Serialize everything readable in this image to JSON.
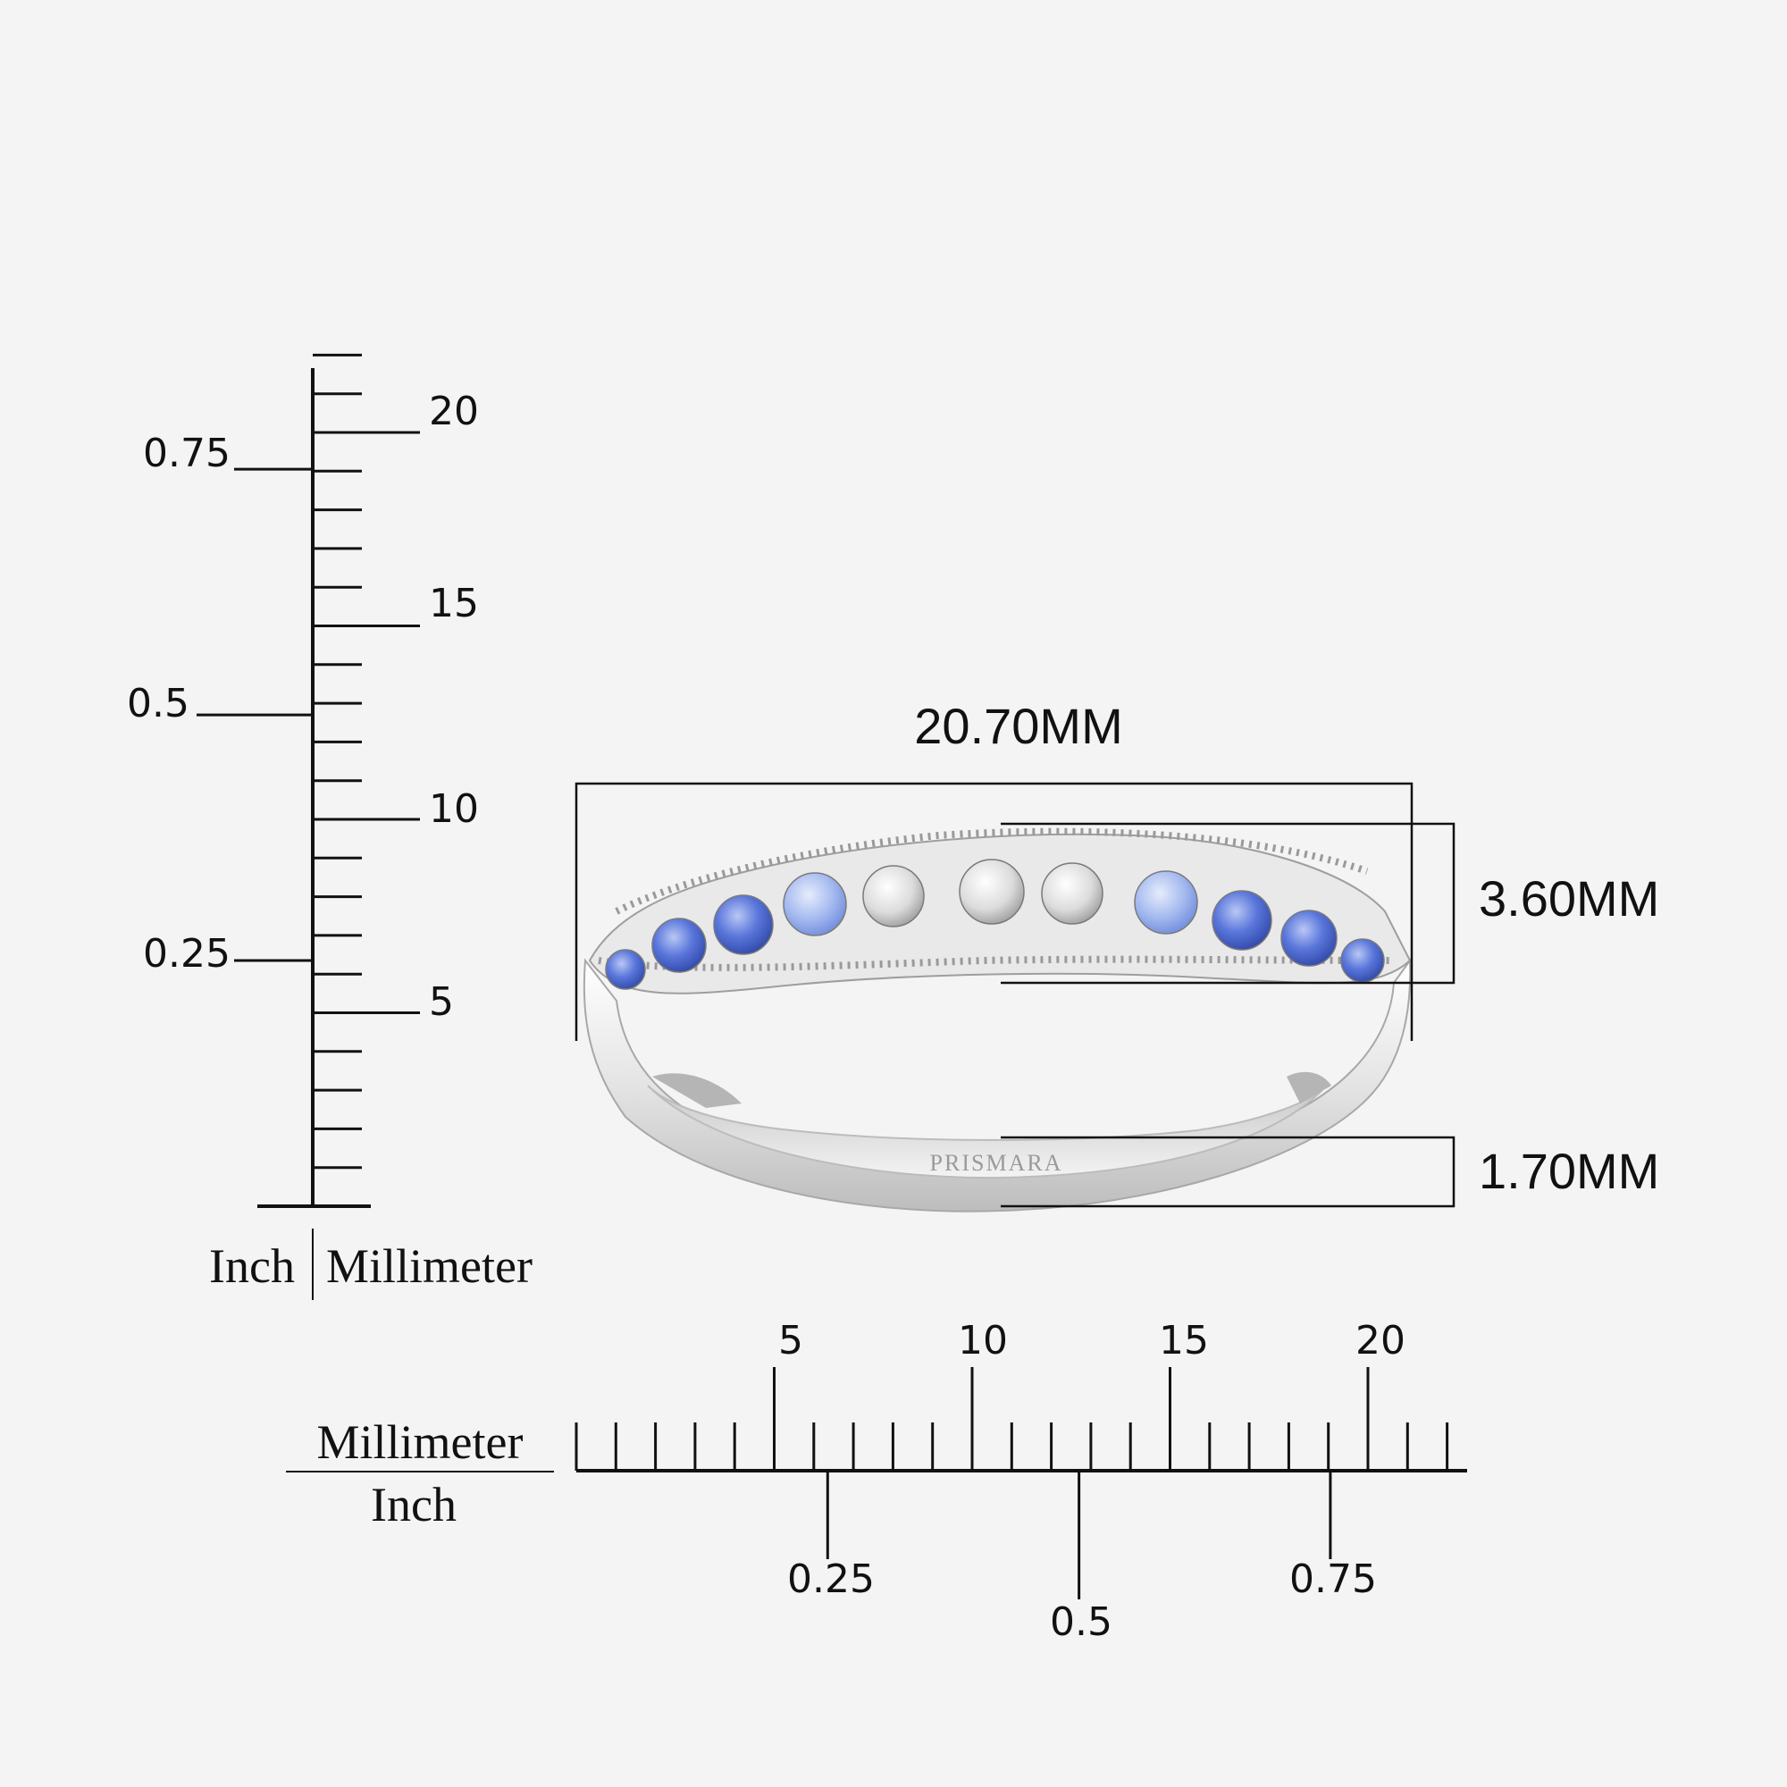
{
  "vertical_ruler": {
    "mm_labels": [
      "5",
      "10",
      "15",
      "20"
    ],
    "inch_labels": [
      "0.25",
      "0.5",
      "0.75"
    ],
    "unit_left": "Inch",
    "unit_right": "Millimeter",
    "mm_values": [
      5,
      10,
      15,
      20
    ],
    "inch_values": [
      0.25,
      0.5,
      0.75
    ]
  },
  "horizontal_ruler": {
    "mm_labels": [
      "5",
      "10",
      "15",
      "20"
    ],
    "inch_labels": [
      "0.25",
      "0.5",
      "0.75"
    ],
    "unit_top": "Millimeter",
    "unit_bottom": "Inch",
    "mm_values": [
      5,
      10,
      15,
      20
    ],
    "inch_values": [
      0.25,
      0.5,
      0.75
    ]
  },
  "dimensions": {
    "width_label": "20.70MM",
    "height_label": "3.60MM",
    "band_label": "1.70MM"
  },
  "ring": {
    "brand": "PRISMARA",
    "metal_color": "#d9d9d9",
    "sapphire_dark": "#4a67d6",
    "sapphire_light": "#9fb6ee",
    "diamond_color": "#e8e8e8"
  }
}
